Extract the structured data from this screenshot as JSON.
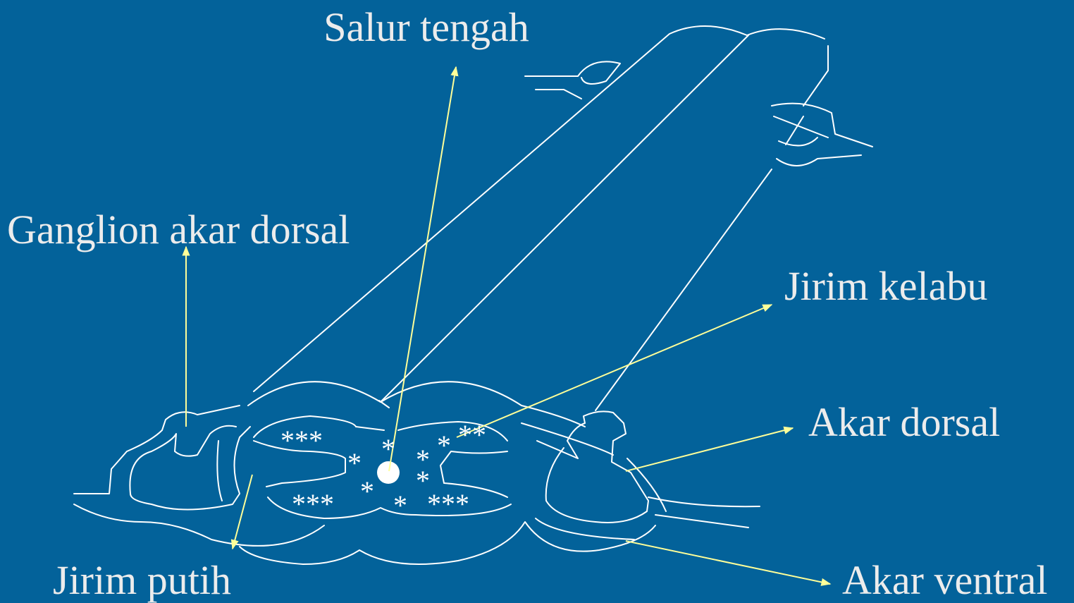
{
  "labels": {
    "central_canal": "Salur tengah",
    "dorsal_root_ganglion": "Ganglion akar dorsal",
    "grey_matter": "Jirim kelabu",
    "dorsal_root": "Akar dorsal",
    "white_matter": "Jirim putih",
    "ventral_root": "Akar ventral"
  },
  "asterisks": [
    "***",
    "*",
    "*",
    "**",
    "*",
    "*",
    "*",
    "***",
    "*",
    "*",
    "***"
  ]
}
